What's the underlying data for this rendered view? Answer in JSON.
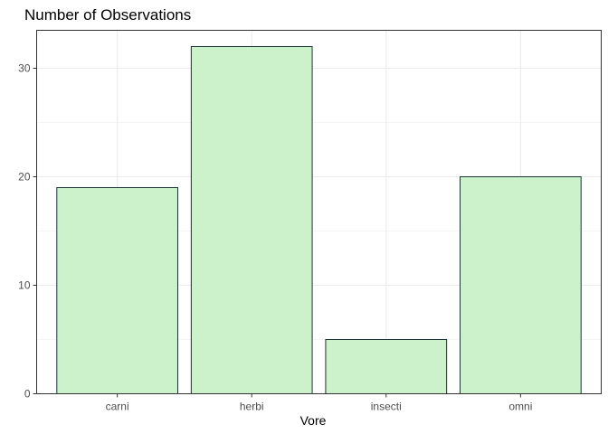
{
  "chart_data": {
    "type": "bar",
    "title": "Number of Observations",
    "xlabel": "Vore",
    "ylabel": "",
    "categories": [
      "carni",
      "herbi",
      "insecti",
      "omni"
    ],
    "values": [
      19,
      32,
      5,
      20
    ],
    "ylim": [
      0,
      33.5
    ],
    "yticks": [
      0,
      10,
      20,
      30
    ],
    "grid": true,
    "legend": "none",
    "colors": {
      "bar_fill": "#ccf2cc",
      "bar_stroke": "#1a3333",
      "grid": "#ebebeb",
      "panel_border": "#333333",
      "tick_label": "#4d4d4d"
    }
  }
}
